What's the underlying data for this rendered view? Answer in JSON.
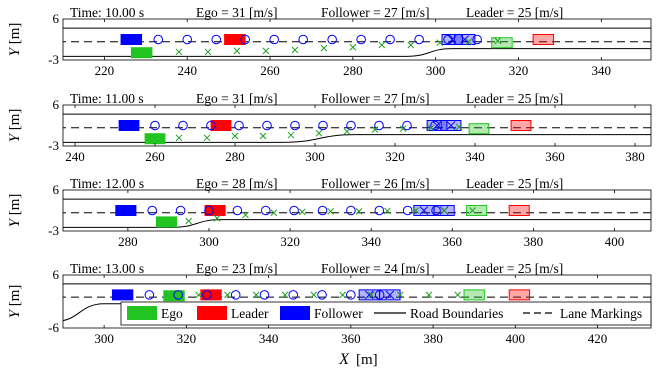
{
  "chart_data": {
    "type": "scatter",
    "xlabel": "X",
    "xunit": "[m]",
    "ylabel": "Y",
    "yunit": "[m]",
    "legend": {
      "placement": "bottom-right",
      "entries": [
        "Ego",
        "Leader",
        "Follower",
        "Road Boundaries",
        "Lane Markings"
      ]
    },
    "colors": {
      "ego": "#22c422",
      "leader": "#ff0000",
      "follower": "#0000ff",
      "predicted_ego": "#22a022",
      "road": "#000000"
    },
    "panels": [
      {
        "time_label": "Time: 10.00 s",
        "ego_label": "Ego = 31 [m/s]",
        "follower_label": "Follower = 27 [m/s]",
        "leader_label": "Leader = 25 [m/s]",
        "xlim": [
          210,
          352
        ],
        "ylim": [
          -3,
          6
        ],
        "xticks": [
          220,
          240,
          260,
          280,
          300,
          320,
          340
        ],
        "yticks": [
          6,
          -3
        ],
        "merge_start": 293,
        "merge_end": 304,
        "ego": [
          229,
          -1.4
        ],
        "leader": [
          251.5,
          1.5
        ],
        "follower": [
          226.5,
          1.5
        ],
        "leader_future": [
          [
            326,
            1.5
          ]
        ],
        "ego_future": [
          [
            316,
            0.8
          ]
        ],
        "follower_future": [
          [
            304,
            1.5
          ],
          [
            307,
            1.5
          ]
        ],
        "ego_pred": [
          [
            238,
            -1.2
          ],
          [
            245,
            -1.2
          ],
          [
            252,
            -1.0
          ],
          [
            259,
            -1.0
          ],
          [
            266,
            -0.8
          ],
          [
            273,
            -0.4
          ],
          [
            280,
            -0.2
          ],
          [
            287,
            0.3
          ],
          [
            294,
            0.3
          ],
          [
            301,
            0.8
          ],
          [
            308,
            1.0
          ],
          [
            315,
            1.2
          ]
        ],
        "follower_pred": [
          [
            233,
            1.5
          ],
          [
            240,
            1.5
          ],
          [
            247,
            1.5
          ],
          [
            254,
            1.5
          ],
          [
            261,
            1.5
          ],
          [
            268,
            1.5
          ],
          [
            275,
            1.5
          ],
          [
            282,
            1.5
          ],
          [
            289,
            1.5
          ],
          [
            296,
            1.5
          ],
          [
            303,
            1.5
          ],
          [
            310,
            1.5
          ]
        ]
      },
      {
        "time_label": "Time: 11.00 s",
        "ego_label": "Ego = 31 [m/s]",
        "follower_label": "Follower = 27 [m/s]",
        "leader_label": "Leader = 25 [m/s]",
        "xlim": [
          237,
          384
        ],
        "ylim": [
          -3,
          6
        ],
        "xticks": [
          240,
          260,
          280,
          300,
          320,
          340,
          360,
          380
        ],
        "yticks": [
          6,
          -3
        ],
        "merge_start": 292,
        "merge_end": 310,
        "ego": [
          260,
          -1.4
        ],
        "leader": [
          276.5,
          1.5
        ],
        "follower": [
          253.5,
          1.5
        ],
        "leader_future": [
          [
            351.5,
            1.5
          ]
        ],
        "ego_future": [
          [
            341,
            0.8
          ]
        ],
        "follower_future": [
          [
            330.5,
            1.5
          ],
          [
            334,
            1.5
          ]
        ],
        "ego_pred": [
          [
            266,
            -1.2
          ],
          [
            273,
            -1.2
          ],
          [
            280,
            -0.8
          ],
          [
            287,
            -0.8
          ],
          [
            294,
            -0.6
          ],
          [
            301,
            -0.2
          ],
          [
            308,
            0.2
          ],
          [
            315,
            0.6
          ],
          [
            322,
            0.8
          ],
          [
            329,
            1.0
          ],
          [
            336,
            1.2
          ]
        ],
        "follower_pred": [
          [
            260,
            1.5
          ],
          [
            267,
            1.5
          ],
          [
            274,
            1.5
          ],
          [
            281,
            1.5
          ],
          [
            288,
            1.5
          ],
          [
            295,
            1.5
          ],
          [
            302,
            1.5
          ],
          [
            309,
            1.5
          ],
          [
            316,
            1.5
          ],
          [
            323,
            1.5
          ],
          [
            330,
            1.5
          ]
        ]
      },
      {
        "time_label": "Time: 12.00 s",
        "ego_label": "Ego = 28 [m/s]",
        "follower_label": "Follower = 26 [m/s]",
        "leader_label": "Leader = 25 [m/s]",
        "xlim": [
          264,
          409
        ],
        "ylim": [
          -3,
          6
        ],
        "xticks": [
          280,
          300,
          320,
          340,
          360,
          380,
          400
        ],
        "yticks": [
          6,
          -3
        ],
        "merge_start": 291,
        "merge_end": 303,
        "ego": [
          289.5,
          -1.0
        ],
        "leader": [
          301.5,
          1.5
        ],
        "follower": [
          279.5,
          1.5
        ],
        "leader_future": [
          [
            376.5,
            1.5
          ]
        ],
        "ego_future": [
          [
            366,
            1.5
          ]
        ],
        "follower_future": [
          [
            353,
            1.5
          ],
          [
            358,
            1.5
          ]
        ],
        "ego_pred": [
          [
            295,
            -0.8
          ],
          [
            302,
            -0.2
          ],
          [
            309,
            0.5
          ],
          [
            316,
            1.0
          ],
          [
            323,
            1.2
          ],
          [
            330,
            1.3
          ],
          [
            337,
            1.3
          ],
          [
            344,
            1.4
          ],
          [
            351,
            1.5
          ],
          [
            358,
            1.5
          ],
          [
            365,
            1.5
          ]
        ],
        "follower_pred": [
          [
            286,
            1.5
          ],
          [
            293,
            1.5
          ],
          [
            300,
            1.5
          ],
          [
            307,
            1.5
          ],
          [
            314,
            1.5
          ],
          [
            321,
            1.5
          ],
          [
            328,
            1.5
          ],
          [
            335,
            1.5
          ],
          [
            342,
            1.5
          ],
          [
            349,
            1.5
          ],
          [
            356,
            1.5
          ]
        ]
      },
      {
        "time_label": "Time: 13.00 s",
        "ego_label": "Ego = 23 [m/s]",
        "follower_label": "Follower = 24 [m/s]",
        "leader_label": "Leader = 25 [m/s]",
        "xlim": [
          290,
          433
        ],
        "ylim": [
          -6,
          6
        ],
        "xticks": [
          300,
          320,
          340,
          360,
          380,
          400,
          420
        ],
        "yticks": [
          6,
          -6
        ],
        "merge_start": 288,
        "merge_end": 300,
        "ego": [
          317,
          1.3
        ],
        "leader": [
          326,
          1.5
        ],
        "follower": [
          304.5,
          1.5
        ],
        "leader_future": [
          [
            401,
            1.5
          ]
        ],
        "ego_future": [
          [
            390,
            1.5
          ]
        ],
        "follower_future": [
          [
            364.5,
            1.5
          ],
          [
            369.5,
            1.5
          ]
        ],
        "ego_pred": [
          [
            323,
            1.5
          ],
          [
            330,
            1.5
          ],
          [
            337,
            1.5
          ],
          [
            344,
            1.5
          ],
          [
            351,
            1.5
          ],
          [
            358,
            1.5
          ],
          [
            365,
            1.5
          ],
          [
            372,
            1.5
          ],
          [
            379,
            1.5
          ],
          [
            386,
            1.5
          ]
        ],
        "follower_pred": [
          [
            311,
            1.5
          ],
          [
            318,
            1.5
          ],
          [
            325,
            1.5
          ],
          [
            332,
            1.5
          ],
          [
            339,
            1.5
          ],
          [
            346,
            1.5
          ],
          [
            353,
            1.5
          ],
          [
            360,
            1.5
          ],
          [
            367,
            1.5
          ]
        ]
      }
    ]
  }
}
